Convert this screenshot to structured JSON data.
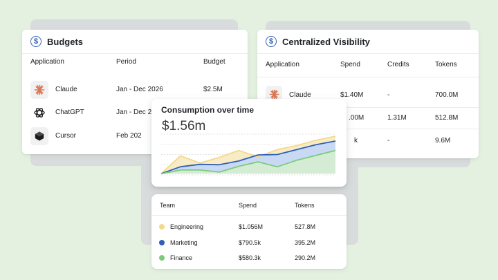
{
  "budgets": {
    "title": "Budgets",
    "columns": [
      "Application",
      "Period",
      "Budget"
    ],
    "rows": [
      {
        "app": "Claude",
        "period": "Jan - Dec 2026",
        "budget": "$2.5M",
        "icon": "claude-icon"
      },
      {
        "app": "ChatGPT",
        "period": "Jan - Dec 2026",
        "budget": "",
        "icon": "chatgpt-icon"
      },
      {
        "app": "Cursor",
        "period": "Feb 202",
        "budget": "",
        "icon": "cursor-icon"
      }
    ]
  },
  "visibility": {
    "title": "Centralized Visibility",
    "columns": [
      "Application",
      "Spend",
      "Credits",
      "Tokens"
    ],
    "rows": [
      {
        "app": "Claude",
        "spend": "$1.40M",
        "credits": "-",
        "tokens": "700.0M"
      },
      {
        "app": "",
        "spend": ".00M",
        "credits": "1.31M",
        "tokens": "512.8M"
      },
      {
        "app": "",
        "spend": "k",
        "credits": "-",
        "tokens": "9.6M"
      }
    ]
  },
  "consumption": {
    "title": "Consumption over time",
    "total": "$1.56m"
  },
  "chart_data": {
    "type": "area",
    "title": "Consumption over time",
    "x": [
      0,
      1,
      2,
      3,
      4,
      5,
      6,
      7,
      8,
      9
    ],
    "series": [
      {
        "name": "Engineering",
        "color": "#f3d98a",
        "values": [
          0.03,
          0.47,
          0.29,
          0.43,
          0.6,
          0.44,
          0.62,
          0.72,
          0.85,
          0.95
        ]
      },
      {
        "name": "Marketing",
        "color": "#2f5fb6",
        "values": [
          0.03,
          0.2,
          0.26,
          0.25,
          0.34,
          0.49,
          0.5,
          0.62,
          0.74,
          0.83
        ]
      },
      {
        "name": "Finance",
        "color": "#7ccb7c",
        "values": [
          0.03,
          0.12,
          0.12,
          0.07,
          0.21,
          0.32,
          0.2,
          0.36,
          0.48,
          0.6
        ]
      }
    ],
    "ylim": [
      0,
      1
    ],
    "grid": true
  },
  "teams": {
    "columns": [
      "Team",
      "Spend",
      "Tokens"
    ],
    "rows": [
      {
        "team": "Engineering",
        "spend": "$1.056M",
        "tokens": "527.8M",
        "color": "#f3d98a"
      },
      {
        "team": "Marketing",
        "spend": "$790.5k",
        "tokens": "395.2M",
        "color": "#2f5fb6"
      },
      {
        "team": "Finance",
        "spend": "$580.3k",
        "tokens": "290.2M",
        "color": "#7ccb7c"
      }
    ]
  }
}
